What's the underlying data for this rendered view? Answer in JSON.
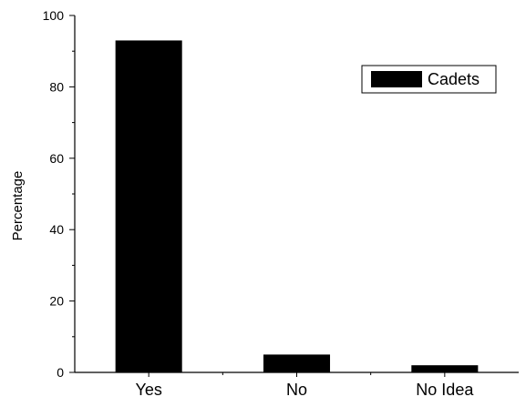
{
  "chart_data": {
    "type": "bar",
    "title": "",
    "xlabel": "",
    "ylabel": "Percentage",
    "categories": [
      "Yes",
      "No",
      "No Idea"
    ],
    "series": [
      {
        "name": "Cadets",
        "values": [
          93,
          5,
          2
        ],
        "color": "#000000"
      }
    ],
    "ylim": [
      0,
      100
    ],
    "yticks": [
      "0",
      "20",
      "40",
      "60",
      "80",
      "100"
    ],
    "grid": false,
    "legend_position": "top-right"
  }
}
